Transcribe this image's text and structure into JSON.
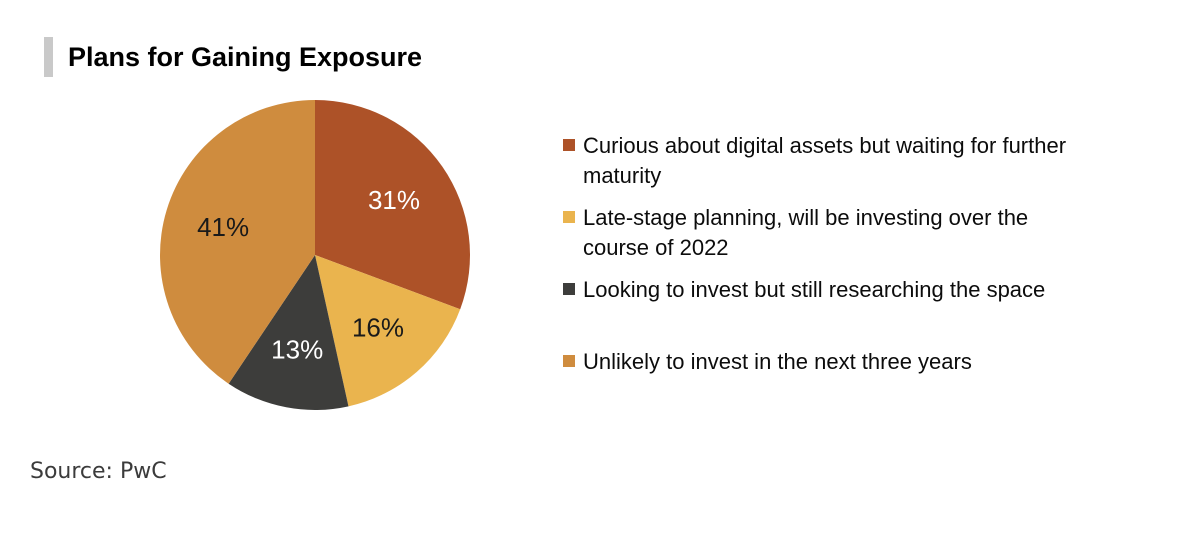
{
  "header": {
    "title": "Plans for Gaining Exposure",
    "accent_bar_color": "#c9c9c9"
  },
  "source": {
    "text": "Source: PwC"
  },
  "chart_data": {
    "type": "pie",
    "title": "Plans for Gaining Exposure",
    "unit": "%",
    "start_angle_deg": 0,
    "direction": "clockwise",
    "legend_position": "right",
    "slices": [
      {
        "label": "Curious about digital assets but waiting for further maturity",
        "label_lines": [
          "Curious about digital assets but waiting for further",
          "maturity"
        ],
        "value": 31,
        "display": "31%",
        "color": "#ad5228",
        "label_color": "#ffffff"
      },
      {
        "label": "Late-stage planning, will be investing over the course of 2022",
        "label_lines": [
          "Late-stage planning, will be investing over the",
          "course of 2022"
        ],
        "value": 16,
        "display": "16%",
        "color": "#eab44e",
        "label_color": "#1a1a1a"
      },
      {
        "label": "Looking to invest but still researching the space",
        "label_lines": [
          "Looking to invest but still researching the space"
        ],
        "value": 13,
        "display": "13%",
        "color": "#3d3d3b",
        "label_color": "#ffffff"
      },
      {
        "label": "Unlikely to invest in the next three years",
        "label_lines": [
          "Unlikely to invest in the next three years"
        ],
        "value": 41,
        "display": "41%",
        "color": "#cf8c3e",
        "label_color": "#1a1a1a"
      }
    ]
  }
}
